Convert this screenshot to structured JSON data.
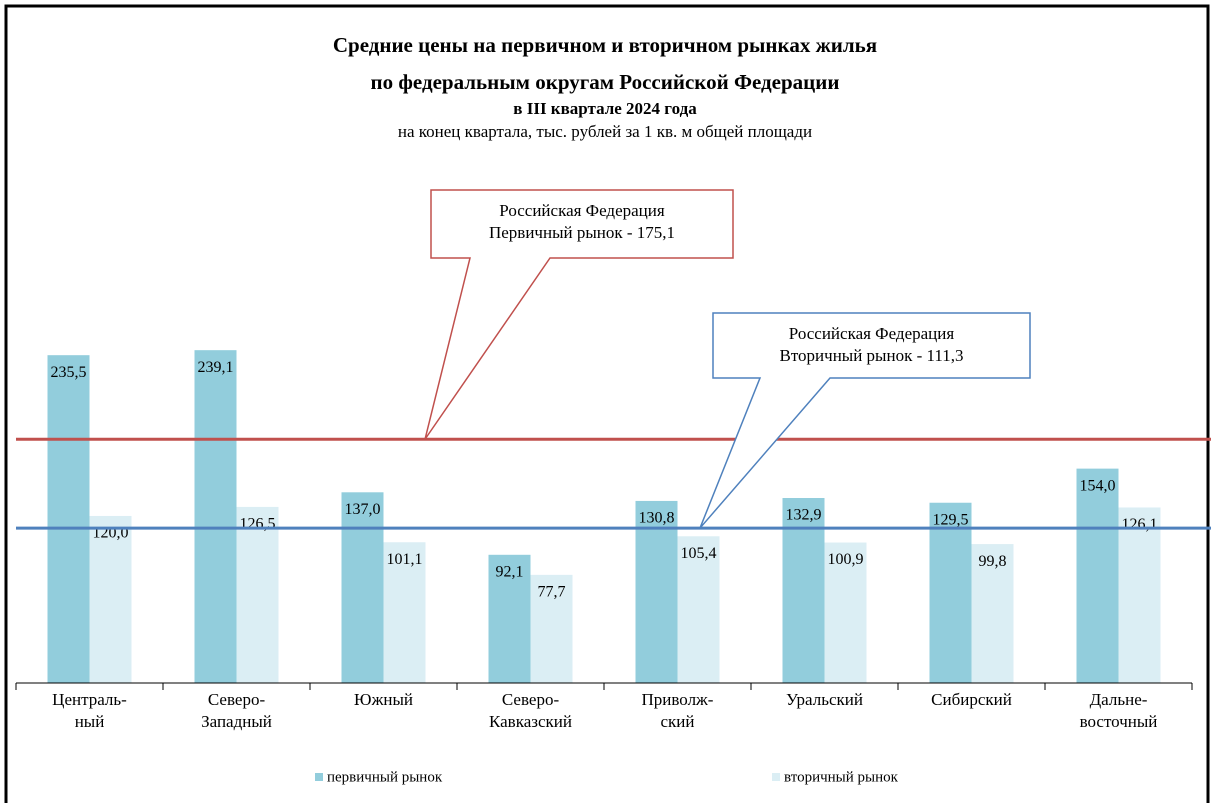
{
  "chart_data": {
    "type": "bar",
    "title": [
      "Средние цены на первичном  и вторичном  рынках  жилья",
      "по федеральным  округам  Российской  Федерации",
      "в III квартале 2024 года"
    ],
    "subtitle": "на конец квартала, тыс. рублей за 1 кв. м общей площади",
    "categories": [
      "Централь-\nный",
      "Северо-\nЗападный",
      "Южный",
      "Северо-\nКавказский",
      "Приволж-\nский",
      "Уральский",
      "Сибирский",
      "Дальне-\nвосточный"
    ],
    "series": [
      {
        "name": "первичный рынок",
        "color": "#92cddc",
        "values": [
          235.5,
          239.1,
          137.0,
          92.1,
          130.8,
          132.9,
          129.5,
          154.0
        ],
        "value_labels": [
          "235,5",
          "239,1",
          "137,0",
          "92,1",
          "130,8",
          "132,9",
          "129,5",
          "154,0"
        ]
      },
      {
        "name": "вторичный рынок",
        "color": "#dbeef4",
        "values": [
          120.0,
          126.5,
          101.1,
          77.7,
          105.4,
          100.9,
          99.8,
          126.1
        ],
        "value_labels": [
          "120,0",
          "126,5",
          "101,1",
          "77,7",
          "105,4",
          "100,9",
          "99,8",
          "126,1"
        ]
      }
    ],
    "reference_lines": [
      {
        "label": "Российская Федерация\nПервичный рынок - 175,1",
        "value": 175.1,
        "color": "#c0504d"
      },
      {
        "label": "Российская Федерация\nВторичный рынок - 111,3",
        "value": 111.3,
        "color": "#4f81bd"
      }
    ],
    "ylim": [
      0,
      250
    ],
    "legend": "bottom"
  }
}
